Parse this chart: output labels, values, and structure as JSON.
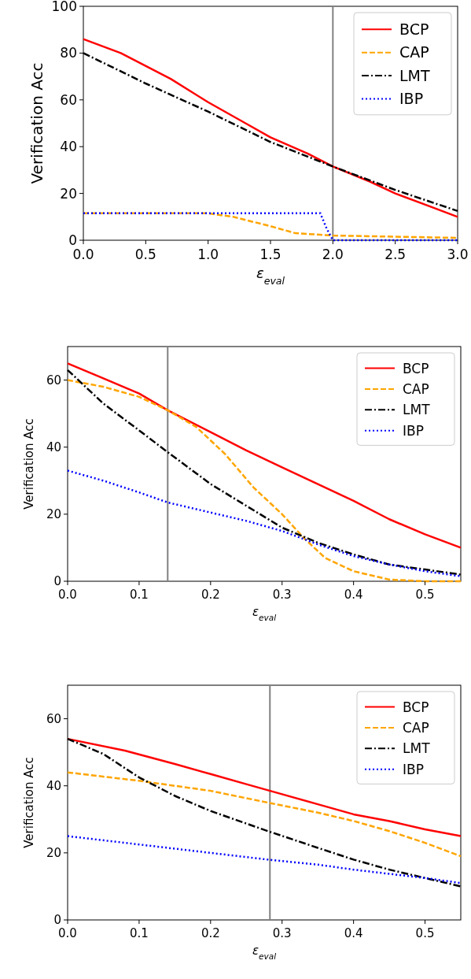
{
  "chart_data": [
    {
      "type": "line",
      "xlabel": "ε$_{eval}$",
      "ylabel": "Verification Acc",
      "xlim": [
        0,
        3
      ],
      "ylim": [
        0,
        100
      ],
      "xticks": [
        {
          "value": 0,
          "label": "0.0"
        },
        {
          "value": 0.5,
          "label": "0.5"
        },
        {
          "value": 1,
          "label": "1.0"
        },
        {
          "value": 1.5,
          "label": "1.5"
        },
        {
          "value": 2,
          "label": "2.0"
        },
        {
          "value": 2.5,
          "label": "2.5"
        },
        {
          "value": 3,
          "label": "3.0"
        }
      ],
      "yticks": [
        0,
        20,
        40,
        60,
        80,
        100
      ],
      "legend": "top right",
      "ref_lines": [
        {
          "axis": "x",
          "value": 2,
          "color": "#808080"
        }
      ],
      "series": [
        {
          "name": "BCP",
          "color": "#ff0000",
          "line_style": "solid",
          "x": [
            0,
            0.3,
            0.7,
            1.0,
            1.3,
            1.5,
            1.8,
            2.0,
            2.3,
            2.5,
            2.8,
            3.0
          ],
          "values": [
            86,
            80,
            69,
            59,
            50,
            44,
            37,
            31.5,
            25,
            20,
            14,
            10
          ]
        },
        {
          "name": "CAP",
          "color": "#ffa500",
          "line_style": "dashed",
          "x": [
            0,
            1.0,
            1.2,
            1.5,
            1.7,
            2.0,
            2.5,
            3.0
          ],
          "values": [
            11.5,
            11.5,
            10,
            6,
            3,
            2,
            1.5,
            1
          ]
        },
        {
          "name": "LMT",
          "color": "#000000",
          "line_style": "dashdot",
          "x": [
            0,
            0.5,
            1.0,
            1.5,
            2.0,
            2.5,
            3.0
          ],
          "values": [
            80,
            67,
            55,
            42,
            31.5,
            21.5,
            12.5
          ]
        },
        {
          "name": "IBP",
          "color": "#0000ff",
          "line_style": "dotted",
          "x": [
            0,
            1.9,
            1.95,
            2.0,
            3.0
          ],
          "values": [
            11.5,
            11.5,
            5,
            0,
            0
          ]
        }
      ]
    },
    {
      "type": "line",
      "xlabel": "ε$_{eval}$",
      "ylabel": "Verification Acc",
      "xlim": [
        0,
        0.55
      ],
      "ylim": [
        0,
        70
      ],
      "xticks": [
        {
          "value": 0,
          "label": "0.0"
        },
        0.1,
        0.2,
        0.3,
        0.4,
        0.5
      ],
      "yticks": [
        0,
        20,
        40,
        60
      ],
      "legend": "top right",
      "ref_lines": [
        {
          "axis": "x",
          "value": 0.14,
          "color": "#808080"
        }
      ],
      "series": [
        {
          "name": "BCP",
          "color": "#ff0000",
          "line_style": "solid",
          "x": [
            0,
            0.05,
            0.1,
            0.14,
            0.2,
            0.25,
            0.3,
            0.35,
            0.4,
            0.45,
            0.5,
            0.55
          ],
          "values": [
            65,
            60.5,
            56,
            51,
            44.5,
            39,
            34,
            29,
            24,
            18.5,
            14,
            10
          ]
        },
        {
          "name": "CAP",
          "color": "#ffa500",
          "line_style": "dashed",
          "x": [
            0,
            0.05,
            0.1,
            0.14,
            0.18,
            0.22,
            0.26,
            0.3,
            0.33,
            0.36,
            0.4,
            0.45,
            0.5,
            0.55
          ],
          "values": [
            60,
            58,
            55,
            51,
            46,
            38,
            28,
            20,
            13,
            7,
            3,
            0.5,
            0,
            0
          ]
        },
        {
          "name": "LMT",
          "color": "#000000",
          "line_style": "dashdot",
          "x": [
            0,
            0.05,
            0.1,
            0.14,
            0.2,
            0.25,
            0.3,
            0.35,
            0.4,
            0.45,
            0.5,
            0.55
          ],
          "values": [
            63,
            53,
            45,
            38.5,
            29,
            22.5,
            16,
            11.5,
            8,
            5,
            3.5,
            2
          ]
        },
        {
          "name": "IBP",
          "color": "#0000ff",
          "line_style": "dotted",
          "x": [
            0,
            0.05,
            0.1,
            0.14,
            0.2,
            0.25,
            0.3,
            0.35,
            0.4,
            0.45,
            0.5,
            0.55
          ],
          "values": [
            33,
            30,
            26.5,
            23.5,
            20.5,
            18,
            15,
            11,
            7.5,
            5,
            3,
            1.5
          ]
        }
      ]
    },
    {
      "type": "line",
      "xlabel": "ε$_{eval}$",
      "ylabel": "Verification Acc",
      "xlim": [
        0,
        0.55
      ],
      "ylim": [
        0,
        70
      ],
      "xticks": [
        {
          "value": 0,
          "label": "0.0"
        },
        0.1,
        0.2,
        0.3,
        0.4,
        0.5
      ],
      "yticks": [
        0,
        20,
        40,
        60
      ],
      "legend": "top right",
      "ref_lines": [
        {
          "axis": "x",
          "value": 0.283,
          "color": "#808080"
        }
      ],
      "series": [
        {
          "name": "BCP",
          "color": "#ff0000",
          "line_style": "solid",
          "x": [
            0,
            0.08,
            0.15,
            0.2,
            0.25,
            0.3,
            0.35,
            0.4,
            0.45,
            0.5,
            0.55
          ],
          "values": [
            54,
            50.5,
            46.5,
            43.5,
            40.5,
            37.5,
            34.5,
            31.5,
            29.5,
            27,
            25
          ]
        },
        {
          "name": "CAP",
          "color": "#ffa500",
          "line_style": "dashed",
          "x": [
            0,
            0.1,
            0.2,
            0.28,
            0.35,
            0.4,
            0.45,
            0.5,
            0.55
          ],
          "values": [
            44,
            41.5,
            38.5,
            35,
            32,
            29.5,
            26.5,
            23,
            19
          ]
        },
        {
          "name": "LMT",
          "color": "#000000",
          "line_style": "dashdot",
          "x": [
            0,
            0.05,
            0.1,
            0.15,
            0.2,
            0.28,
            0.35,
            0.4,
            0.45,
            0.5,
            0.55
          ],
          "values": [
            54,
            49.5,
            42.5,
            37,
            32.5,
            26.5,
            21.5,
            18,
            15,
            12.5,
            10
          ]
        },
        {
          "name": "IBP",
          "color": "#0000ff",
          "line_style": "dotted",
          "x": [
            0,
            0.1,
            0.2,
            0.28,
            0.35,
            0.4,
            0.5,
            0.55
          ],
          "values": [
            25,
            22.5,
            20,
            18,
            16.5,
            15,
            12.5,
            11
          ]
        }
      ]
    }
  ]
}
